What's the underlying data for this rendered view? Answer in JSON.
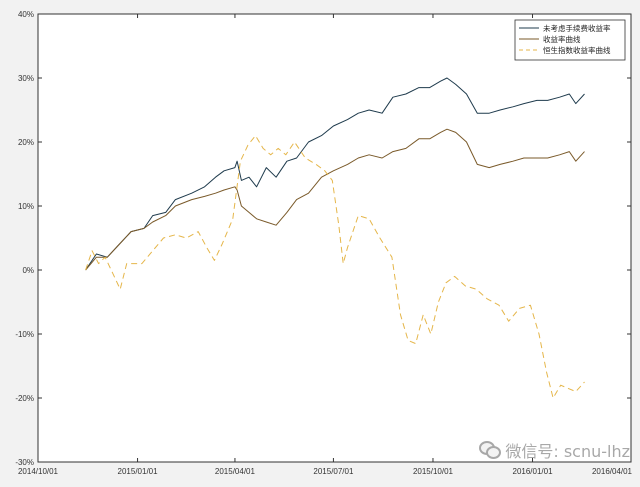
{
  "chart_data": {
    "type": "line",
    "title": "",
    "xlabel": "",
    "ylabel": "",
    "x_range": [
      "2014-10-01",
      "2016-04-01"
    ],
    "ylim": [
      -30,
      40
    ],
    "x_ticks": [
      "2014/10/01",
      "2015/01/01",
      "2015/04/01",
      "2015/07/01",
      "2015/10/01",
      "2016/01/01",
      "2016/04/01"
    ],
    "y_ticks": [
      -30,
      -20,
      -10,
      0,
      10,
      20,
      30,
      40
    ],
    "y_tick_labels": [
      "-30%",
      "-20%",
      "-10%",
      "0%",
      "10%",
      "20%",
      "30%",
      "40%"
    ],
    "grid": false,
    "legend_position": "top-right",
    "series": [
      {
        "name": "未考虑手续费收益率",
        "color": "#1f3b4d",
        "style": "solid",
        "points": [
          [
            "2014-11-14",
            0.0
          ],
          [
            "2014-11-24",
            2.5
          ],
          [
            "2014-12-04",
            2.0
          ],
          [
            "2014-12-15",
            4.0
          ],
          [
            "2014-12-26",
            6.0
          ],
          [
            "2015-01-07",
            6.5
          ],
          [
            "2015-01-15",
            8.5
          ],
          [
            "2015-01-27",
            9.0
          ],
          [
            "2015-02-05",
            11.0
          ],
          [
            "2015-02-20",
            12.0
          ],
          [
            "2015-03-04",
            13.0
          ],
          [
            "2015-03-14",
            14.5
          ],
          [
            "2015-03-22",
            15.5
          ],
          [
            "2015-04-01",
            16.0
          ],
          [
            "2015-04-03",
            17.0
          ],
          [
            "2015-04-07",
            14.0
          ],
          [
            "2015-04-14",
            14.5
          ],
          [
            "2015-04-21",
            13.0
          ],
          [
            "2015-04-30",
            16.0
          ],
          [
            "2015-05-09",
            14.5
          ],
          [
            "2015-05-19",
            17.0
          ],
          [
            "2015-05-28",
            17.5
          ],
          [
            "2015-06-08",
            20.0
          ],
          [
            "2015-06-20",
            21.0
          ],
          [
            "2015-07-01",
            22.5
          ],
          [
            "2015-07-14",
            23.5
          ],
          [
            "2015-07-24",
            24.5
          ],
          [
            "2015-08-03",
            25.0
          ],
          [
            "2015-08-15",
            24.5
          ],
          [
            "2015-08-25",
            27.0
          ],
          [
            "2015-09-06",
            27.5
          ],
          [
            "2015-09-18",
            28.5
          ],
          [
            "2015-09-28",
            28.5
          ],
          [
            "2015-10-08",
            29.5
          ],
          [
            "2015-10-14",
            30.0
          ],
          [
            "2015-10-22",
            29.0
          ],
          [
            "2015-11-01",
            27.5
          ],
          [
            "2015-11-11",
            24.5
          ],
          [
            "2015-11-22",
            24.5
          ],
          [
            "2015-12-02",
            25.0
          ],
          [
            "2015-12-14",
            25.5
          ],
          [
            "2015-12-24",
            26.0
          ],
          [
            "2016-01-05",
            26.5
          ],
          [
            "2016-01-15",
            26.5
          ],
          [
            "2016-01-26",
            27.0
          ],
          [
            "2016-02-04",
            27.5
          ],
          [
            "2016-02-10",
            26.0
          ],
          [
            "2016-02-18",
            27.5
          ]
        ]
      },
      {
        "name": "收益率曲线",
        "color": "#7a5a2a",
        "style": "solid",
        "points": [
          [
            "2014-11-14",
            0.0
          ],
          [
            "2014-11-24",
            2.0
          ],
          [
            "2014-12-04",
            2.0
          ],
          [
            "2014-12-15",
            4.0
          ],
          [
            "2014-12-26",
            6.0
          ],
          [
            "2015-01-07",
            6.5
          ],
          [
            "2015-01-15",
            7.5
          ],
          [
            "2015-01-27",
            8.5
          ],
          [
            "2015-02-05",
            10.0
          ],
          [
            "2015-02-20",
            11.0
          ],
          [
            "2015-03-04",
            11.5
          ],
          [
            "2015-03-14",
            12.0
          ],
          [
            "2015-03-22",
            12.5
          ],
          [
            "2015-04-01",
            13.0
          ],
          [
            "2015-04-03",
            12.5
          ],
          [
            "2015-04-07",
            10.0
          ],
          [
            "2015-04-14",
            9.0
          ],
          [
            "2015-04-21",
            8.0
          ],
          [
            "2015-04-30",
            7.5
          ],
          [
            "2015-05-09",
            7.0
          ],
          [
            "2015-05-19",
            9.0
          ],
          [
            "2015-05-28",
            11.0
          ],
          [
            "2015-06-08",
            12.0
          ],
          [
            "2015-06-20",
            14.5
          ],
          [
            "2015-07-01",
            15.5
          ],
          [
            "2015-07-14",
            16.5
          ],
          [
            "2015-07-24",
            17.5
          ],
          [
            "2015-08-03",
            18.0
          ],
          [
            "2015-08-15",
            17.5
          ],
          [
            "2015-08-25",
            18.5
          ],
          [
            "2015-09-06",
            19.0
          ],
          [
            "2015-09-18",
            20.5
          ],
          [
            "2015-09-28",
            20.5
          ],
          [
            "2015-10-08",
            21.5
          ],
          [
            "2015-10-14",
            22.0
          ],
          [
            "2015-10-22",
            21.5
          ],
          [
            "2015-11-01",
            20.0
          ],
          [
            "2015-11-11",
            16.5
          ],
          [
            "2015-11-22",
            16.0
          ],
          [
            "2015-12-02",
            16.5
          ],
          [
            "2015-12-14",
            17.0
          ],
          [
            "2015-12-24",
            17.5
          ],
          [
            "2016-01-05",
            17.5
          ],
          [
            "2016-01-15",
            17.5
          ],
          [
            "2016-01-26",
            18.0
          ],
          [
            "2016-02-04",
            18.5
          ],
          [
            "2016-02-10",
            17.0
          ],
          [
            "2016-02-18",
            18.5
          ]
        ]
      },
      {
        "name": "恒生指数收益率曲线",
        "color": "#e5b64a",
        "style": "dashed",
        "points": [
          [
            "2014-11-14",
            0.0
          ],
          [
            "2014-11-20",
            3.0
          ],
          [
            "2014-11-26",
            1.0
          ],
          [
            "2014-12-02",
            2.0
          ],
          [
            "2014-12-09",
            -0.5
          ],
          [
            "2014-12-16",
            -3.0
          ],
          [
            "2014-12-22",
            1.0
          ],
          [
            "2015-01-05",
            1.0
          ],
          [
            "2015-01-15",
            3.0
          ],
          [
            "2015-01-25",
            5.0
          ],
          [
            "2015-02-05",
            5.5
          ],
          [
            "2015-02-15",
            5.0
          ],
          [
            "2015-02-26",
            6.0
          ],
          [
            "2015-03-06",
            3.5
          ],
          [
            "2015-03-13",
            1.5
          ],
          [
            "2015-03-20",
            4.0
          ],
          [
            "2015-03-30",
            8.0
          ],
          [
            "2015-04-06",
            17.0
          ],
          [
            "2015-04-13",
            19.5
          ],
          [
            "2015-04-20",
            21.0
          ],
          [
            "2015-04-27",
            19.0
          ],
          [
            "2015-05-04",
            18.0
          ],
          [
            "2015-05-11",
            19.0
          ],
          [
            "2015-05-18",
            18.0
          ],
          [
            "2015-05-26",
            20.0
          ],
          [
            "2015-06-05",
            17.5
          ],
          [
            "2015-06-15",
            16.5
          ],
          [
            "2015-06-23",
            15.5
          ],
          [
            "2015-06-30",
            14.0
          ],
          [
            "2015-07-06",
            7.0
          ],
          [
            "2015-07-10",
            1.0
          ],
          [
            "2015-07-14",
            3.5
          ],
          [
            "2015-07-24",
            8.5
          ],
          [
            "2015-08-03",
            8.0
          ],
          [
            "2015-08-13",
            5.0
          ],
          [
            "2015-08-24",
            2.0
          ],
          [
            "2015-09-01",
            -7.0
          ],
          [
            "2015-09-08",
            -11.0
          ],
          [
            "2015-09-15",
            -11.5
          ],
          [
            "2015-09-22",
            -7.0
          ],
          [
            "2015-09-29",
            -10.0
          ],
          [
            "2015-10-06",
            -5.0
          ],
          [
            "2015-10-13",
            -2.0
          ],
          [
            "2015-10-21",
            -1.0
          ],
          [
            "2015-10-31",
            -2.5
          ],
          [
            "2015-11-10",
            -3.0
          ],
          [
            "2015-11-20",
            -4.5
          ],
          [
            "2015-12-01",
            -5.5
          ],
          [
            "2015-12-10",
            -8.0
          ],
          [
            "2015-12-20",
            -6.0
          ],
          [
            "2015-12-30",
            -5.5
          ],
          [
            "2016-01-07",
            -10.0
          ],
          [
            "2016-01-14",
            -16.0
          ],
          [
            "2016-01-20",
            -20.0
          ],
          [
            "2016-01-27",
            -18.0
          ],
          [
            "2016-02-03",
            -18.5
          ],
          [
            "2016-02-10",
            -19.0
          ],
          [
            "2016-02-18",
            -17.5
          ]
        ]
      }
    ]
  },
  "watermark": {
    "label": "微信号: scnu-lhz",
    "icon": "wechat-icon"
  }
}
